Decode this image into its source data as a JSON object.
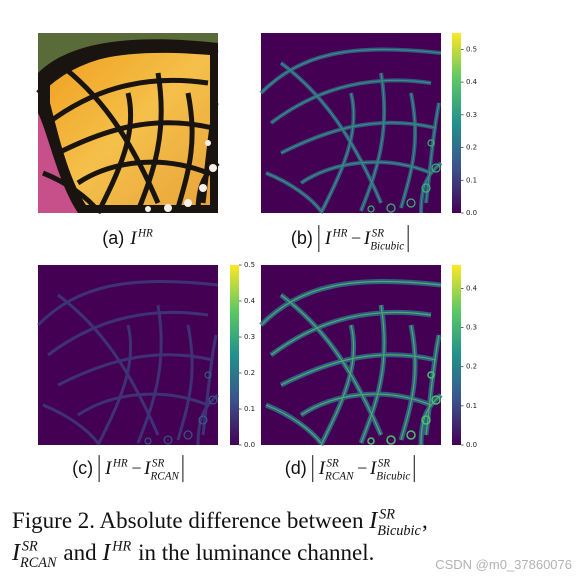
{
  "panels": [
    {
      "label": "(a)",
      "expr": [
        {
          "base": "I",
          "sup": "HR"
        }
      ]
    },
    {
      "label": "(b)",
      "expr": [
        {
          "base": "I",
          "sup": "HR"
        },
        {
          "op": "−"
        },
        {
          "base": "I",
          "sup": "SR",
          "sub": "Bicubic"
        }
      ],
      "colorbar": {
        "lim": [
          0,
          0.55
        ],
        "ticks": [
          {
            "value": 0,
            "label": "0.0"
          },
          0.1,
          0.2,
          0.3,
          0.4,
          0.5
        ]
      }
    },
    {
      "label": "(c)",
      "expr": [
        {
          "base": "I",
          "sup": "HR"
        },
        {
          "op": "−"
        },
        {
          "base": "I",
          "sup": "SR",
          "sub": "RCAN"
        }
      ],
      "colorbar": {
        "lim": [
          0,
          0.5
        ],
        "ticks": [
          {
            "value": 0,
            "label": "0.0"
          },
          0.1,
          0.2,
          0.3,
          0.4,
          0.5
        ]
      }
    },
    {
      "label": "(d)",
      "expr": [
        {
          "base": "I",
          "sup": "SR",
          "sub": "RCAN"
        },
        {
          "op": "−"
        },
        {
          "base": "I",
          "sup": "SR",
          "sub": "Bicubic"
        }
      ],
      "colorbar": {
        "lim": [
          0,
          0.46
        ],
        "ticks": [
          {
            "value": 0,
            "label": "0.0"
          },
          0.1,
          0.2,
          0.3,
          0.4
        ]
      }
    }
  ],
  "figure_caption": {
    "lines": [
      [
        {
          "text": "Figure 2. Absolute difference between "
        },
        {
          "base": "I",
          "sup": "SR",
          "sub": "Bicubic"
        },
        {
          "text": ","
        }
      ],
      [
        {
          "base": "I",
          "sup": "SR",
          "sub": "RCAN"
        },
        {
          "text": " and "
        },
        {
          "base": "I",
          "sup": "HR"
        },
        {
          "text": " in the luminance channel."
        }
      ]
    ]
  },
  "watermark": "CSDN @m0_37860076"
}
